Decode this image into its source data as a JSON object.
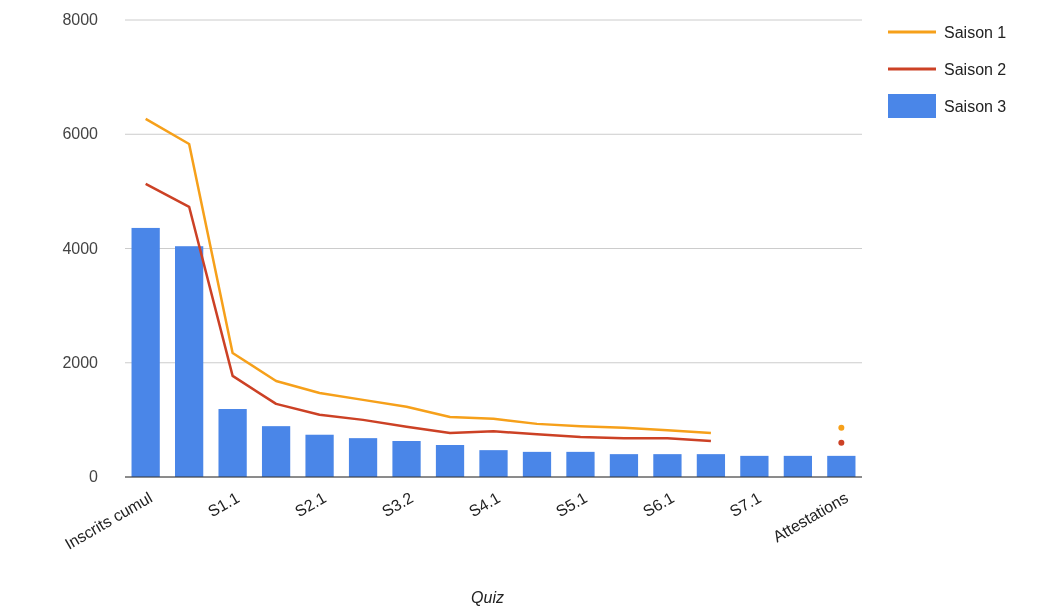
{
  "chart_data": {
    "type": "bar",
    "xlabel": "Quiz",
    "categories": [
      "Inscrits cumul",
      null,
      "S1.1",
      null,
      "S2.1",
      null,
      "S3.2",
      null,
      "S4.1",
      null,
      "S5.1",
      null,
      "S6.1",
      null,
      "S7.1",
      null,
      "Attestations"
    ],
    "series": [
      {
        "name": "Saison 1",
        "type": "line",
        "color": "#f6a01a",
        "values": [
          6270,
          5830,
          2170,
          1680,
          1470,
          1350,
          1230,
          1050,
          1020,
          930,
          890,
          860,
          820,
          770,
          null,
          null,
          860
        ]
      },
      {
        "name": "Saison 2",
        "type": "line",
        "color": "#cc4125",
        "values": [
          5130,
          4730,
          1770,
          1280,
          1090,
          1000,
          880,
          770,
          800,
          750,
          700,
          680,
          680,
          630,
          null,
          null,
          600
        ]
      },
      {
        "name": "Saison 3",
        "color": "#4a86e8",
        "values": [
          4360,
          4040,
          1190,
          890,
          740,
          680,
          630,
          560,
          470,
          440,
          440,
          400,
          400,
          400,
          370,
          370,
          370
        ]
      }
    ],
    "ylim": [
      0,
      8000
    ],
    "yticks": [
      0,
      2000,
      4000,
      6000,
      8000
    ],
    "grid": "y",
    "legend": "top right",
    "marker": "none",
    "line_style": "solid"
  }
}
